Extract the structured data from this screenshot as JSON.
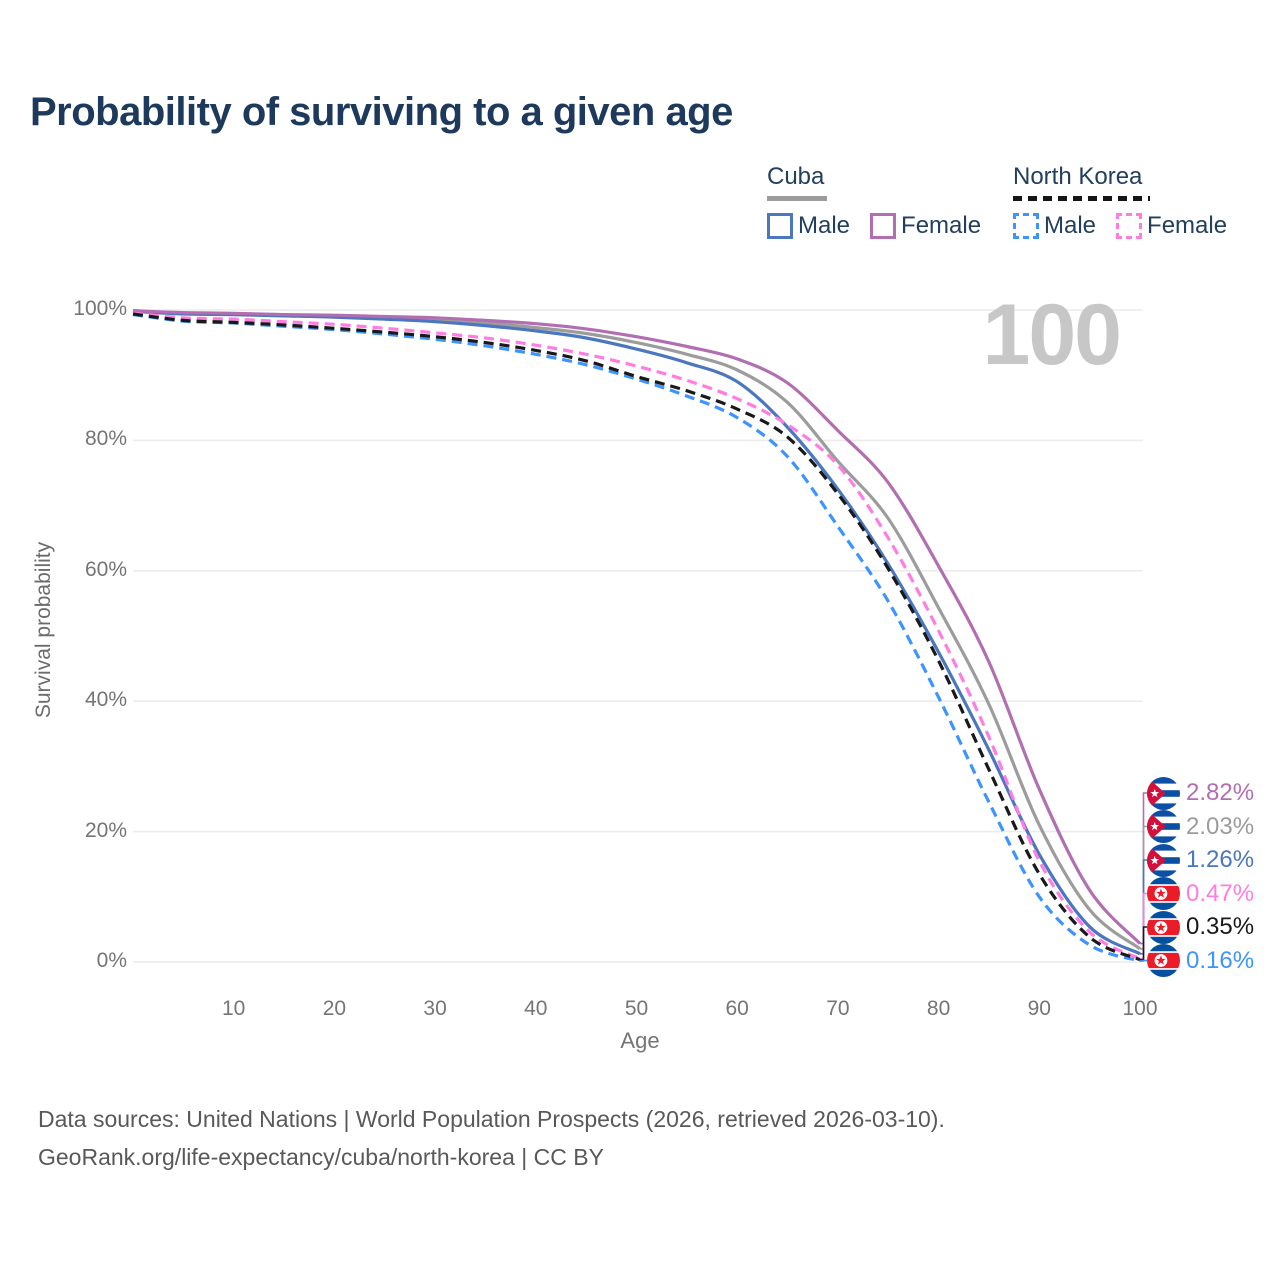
{
  "title": "Probability of surviving to a given age",
  "watermark": "100",
  "legend": {
    "groups": [
      {
        "label": "Cuba",
        "line_style": "solid",
        "bar_color": "#9c9c9c",
        "items": [
          {
            "label": "Male",
            "color": "#4a77bd"
          },
          {
            "label": "Female",
            "color": "#b16fb2"
          }
        ]
      },
      {
        "label": "North Korea",
        "line_style": "dashed",
        "bar_color": "#151515",
        "items": [
          {
            "label": "Male",
            "color": "#3d94ff"
          },
          {
            "label": "Female",
            "color": "#ff7de2"
          }
        ]
      }
    ]
  },
  "chart_data": {
    "type": "line",
    "title": "Probability of surviving to a given age",
    "xlabel": "Age",
    "ylabel": "Survival probability",
    "xlim": [
      0,
      100
    ],
    "ylim": [
      0,
      100
    ],
    "grid": "horizontal",
    "legend_position": "top-right",
    "x_ticks": [
      {
        "label": "10",
        "v": 10
      },
      {
        "label": "20",
        "v": 20
      },
      {
        "label": "30",
        "v": 30
      },
      {
        "label": "40",
        "v": 40
      },
      {
        "label": "50",
        "v": 50
      },
      {
        "label": "60",
        "v": 60
      },
      {
        "label": "70",
        "v": 70
      },
      {
        "label": "80",
        "v": 80
      },
      {
        "label": "90",
        "v": 90
      },
      {
        "label": "100",
        "v": 100
      }
    ],
    "y_ticks": [
      {
        "label": "0%",
        "v": 0
      },
      {
        "label": "20%",
        "v": 20
      },
      {
        "label": "40%",
        "v": 40
      },
      {
        "label": "60%",
        "v": 60
      },
      {
        "label": "80%",
        "v": 80
      },
      {
        "label": "100%",
        "v": 100
      }
    ],
    "ages": [
      0,
      5,
      10,
      15,
      20,
      25,
      30,
      35,
      40,
      45,
      50,
      55,
      60,
      65,
      70,
      75,
      80,
      85,
      90,
      95,
      100
    ],
    "series": [
      {
        "name": "Cuba Female",
        "country": "Cuba",
        "sex": "Female",
        "flag": "cuba",
        "color": "#b16fb2",
        "dashed": false,
        "end_label": "2.82%",
        "values": [
          99.9,
          99.6,
          99.5,
          99.3,
          99.2,
          99.0,
          98.8,
          98.4,
          97.9,
          97.1,
          95.9,
          94.4,
          92.5,
          88.8,
          81.5,
          73.5,
          60.7,
          46.0,
          26.5,
          11.0,
          2.82
        ]
      },
      {
        "name": "Cuba Both sexes",
        "country": "Cuba",
        "sex": "Both",
        "flag": "cuba",
        "color": "#9c9c9c",
        "dashed": false,
        "end_label": "2.03%",
        "values": [
          99.9,
          99.5,
          99.4,
          99.2,
          99.0,
          98.8,
          98.5,
          98.0,
          97.3,
          96.4,
          95.0,
          93.2,
          90.8,
          85.8,
          76.8,
          68.0,
          54.3,
          39.5,
          21.0,
          8.0,
          2.03
        ]
      },
      {
        "name": "Cuba Male",
        "country": "Cuba",
        "sex": "Male",
        "flag": "cuba",
        "color": "#4a77bd",
        "dashed": false,
        "end_label": "1.26%",
        "values": [
          99.8,
          99.4,
          99.3,
          99.1,
          98.9,
          98.6,
          98.2,
          97.6,
          96.8,
          95.7,
          94.0,
          91.9,
          89.0,
          82.0,
          72.5,
          61.0,
          47.5,
          32.5,
          16.5,
          5.4,
          1.26
        ]
      },
      {
        "name": "North Korea Female",
        "country": "North Korea",
        "sex": "Female",
        "flag": "nk",
        "color": "#ff7de2",
        "dashed": true,
        "end_label": "0.47%",
        "values": [
          99.5,
          98.8,
          98.6,
          98.2,
          97.8,
          97.2,
          96.5,
          95.7,
          94.6,
          93.2,
          91.4,
          89.2,
          86.4,
          82.4,
          76.2,
          65.0,
          50.8,
          34.5,
          15.5,
          4.6,
          0.47
        ]
      },
      {
        "name": "North Korea Both sexes",
        "country": "North Korea",
        "sex": "Both",
        "flag": "nk",
        "color": "#191919",
        "dashed": true,
        "end_label": "0.35%",
        "values": [
          99.4,
          98.4,
          98.1,
          97.7,
          97.2,
          96.6,
          95.9,
          95.0,
          93.8,
          92.2,
          89.8,
          87.6,
          84.8,
          80.5,
          71.8,
          60.3,
          46.2,
          29.5,
          13.5,
          3.8,
          0.35
        ]
      },
      {
        "name": "North Korea Male",
        "country": "North Korea",
        "sex": "Male",
        "flag": "nk",
        "color": "#3d94ff",
        "dashed": true,
        "end_label": "0.16%",
        "values": [
          99.3,
          98.3,
          98.0,
          97.5,
          97.0,
          96.3,
          95.5,
          94.5,
          93.2,
          91.6,
          89.4,
          86.8,
          83.5,
          77.5,
          66.8,
          55.3,
          40.6,
          24.5,
          10.0,
          2.6,
          0.16
        ]
      }
    ]
  },
  "footer": {
    "line1": "Data sources: United Nations | World Population Prospects (2026, retrieved 2026-03-10).",
    "line2": "GeoRank.org/life-expectancy/cuba/north-korea | CC BY"
  }
}
